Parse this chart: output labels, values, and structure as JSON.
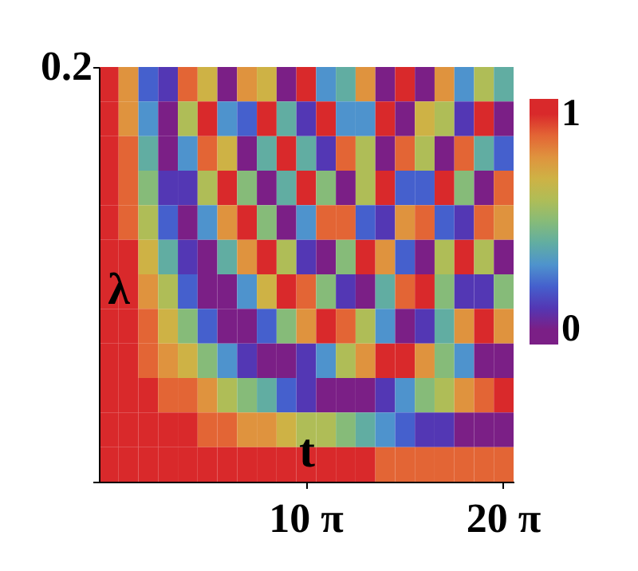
{
  "chart_data": {
    "type": "heatmap",
    "xlabel": "t",
    "ylabel": "λ",
    "annotations": [
      "0.2"
    ],
    "categories": [
      null,
      null,
      null,
      null,
      null,
      null,
      null,
      null,
      null,
      null,
      "10 π",
      null,
      null,
      null,
      null,
      null,
      null,
      null,
      null,
      null,
      "20 π"
    ],
    "y_categories": [
      null,
      null,
      null,
      null,
      null,
      null,
      null,
      null,
      null,
      null,
      null,
      null
    ],
    "cells": [
      [
        1.0,
        0.8,
        0.2,
        0.1,
        0.9,
        0.7,
        0.0,
        0.8,
        0.7,
        0.0,
        1.0,
        0.3,
        0.4,
        0.8,
        0.0,
        1.0,
        0.0,
        0.8,
        0.3,
        0.6,
        0.4
      ],
      [
        1.0,
        0.8,
        0.3,
        0.0,
        0.6,
        1.0,
        0.3,
        0.2,
        1.0,
        0.4,
        0.1,
        1.0,
        0.3,
        0.3,
        1.0,
        0.0,
        0.7,
        0.6,
        0.1,
        1.0,
        0.0
      ],
      [
        1.0,
        0.9,
        0.4,
        0.0,
        0.3,
        0.9,
        0.7,
        0.0,
        0.4,
        1.0,
        0.4,
        0.1,
        0.9,
        0.6,
        0.0,
        0.9,
        0.6,
        0.0,
        0.9,
        0.4,
        0.2
      ],
      [
        1.0,
        0.9,
        0.5,
        0.1,
        0.1,
        0.6,
        1.0,
        0.5,
        0.0,
        0.4,
        1.0,
        0.5,
        0.0,
        0.6,
        1.0,
        0.2,
        0.2,
        1.0,
        0.5,
        0.0,
        0.9
      ],
      [
        1.0,
        0.9,
        0.6,
        0.2,
        0.0,
        0.3,
        0.8,
        1.0,
        0.5,
        0.0,
        0.3,
        0.9,
        0.9,
        0.2,
        0.1,
        0.8,
        0.9,
        0.2,
        0.1,
        0.9,
        0.8
      ],
      [
        1.0,
        1.0,
        0.7,
        0.4,
        0.1,
        0.0,
        0.4,
        0.8,
        1.0,
        0.6,
        0.1,
        0.0,
        0.5,
        1.0,
        0.8,
        0.2,
        0.0,
        0.6,
        1.0,
        0.6,
        0.0
      ],
      [
        1.0,
        1.0,
        0.8,
        0.6,
        0.2,
        0.0,
        0.0,
        0.3,
        0.7,
        1.0,
        0.9,
        0.5,
        0.1,
        0.0,
        0.4,
        0.9,
        1.0,
        0.5,
        0.1,
        0.1,
        0.5
      ],
      [
        1.0,
        1.0,
        0.9,
        0.7,
        0.5,
        0.2,
        0.0,
        0.0,
        0.2,
        0.5,
        0.8,
        1.0,
        0.9,
        0.6,
        0.3,
        0.0,
        0.1,
        0.4,
        0.8,
        1.0,
        0.8
      ],
      [
        1.0,
        1.0,
        0.9,
        0.8,
        0.7,
        0.5,
        0.3,
        0.1,
        0.0,
        0.0,
        0.1,
        0.3,
        0.6,
        0.8,
        1.0,
        1.0,
        0.8,
        0.5,
        0.3,
        0.0,
        0.0
      ],
      [
        1.0,
        1.0,
        1.0,
        0.9,
        0.9,
        0.8,
        0.6,
        0.5,
        0.4,
        0.2,
        0.1,
        0.0,
        0.0,
        0.0,
        0.1,
        0.3,
        0.5,
        0.6,
        0.8,
        0.9,
        1.0
      ],
      [
        1.0,
        1.0,
        1.0,
        1.0,
        1.0,
        0.9,
        0.9,
        0.8,
        0.8,
        0.7,
        0.6,
        0.6,
        0.5,
        0.4,
        0.3,
        0.2,
        0.1,
        0.1,
        0.0,
        0.0,
        0.0
      ],
      [
        1.0,
        1.0,
        1.0,
        1.0,
        1.0,
        1.0,
        1.0,
        1.0,
        1.0,
        1.0,
        1.0,
        1.0,
        1.0,
        1.0,
        0.9,
        0.9,
        0.9,
        0.9,
        0.9,
        0.9,
        0.9
      ]
    ],
    "clim": [
      -0.07,
      1.07
    ],
    "cticks": [
      0,
      1
    ],
    "colors": [
      "#7b1f86",
      "#4141c9",
      "#4b8fd3",
      "#66b596",
      "#a6c05c",
      "#d2b043",
      "#e8803a",
      "#d9292b"
    ]
  }
}
